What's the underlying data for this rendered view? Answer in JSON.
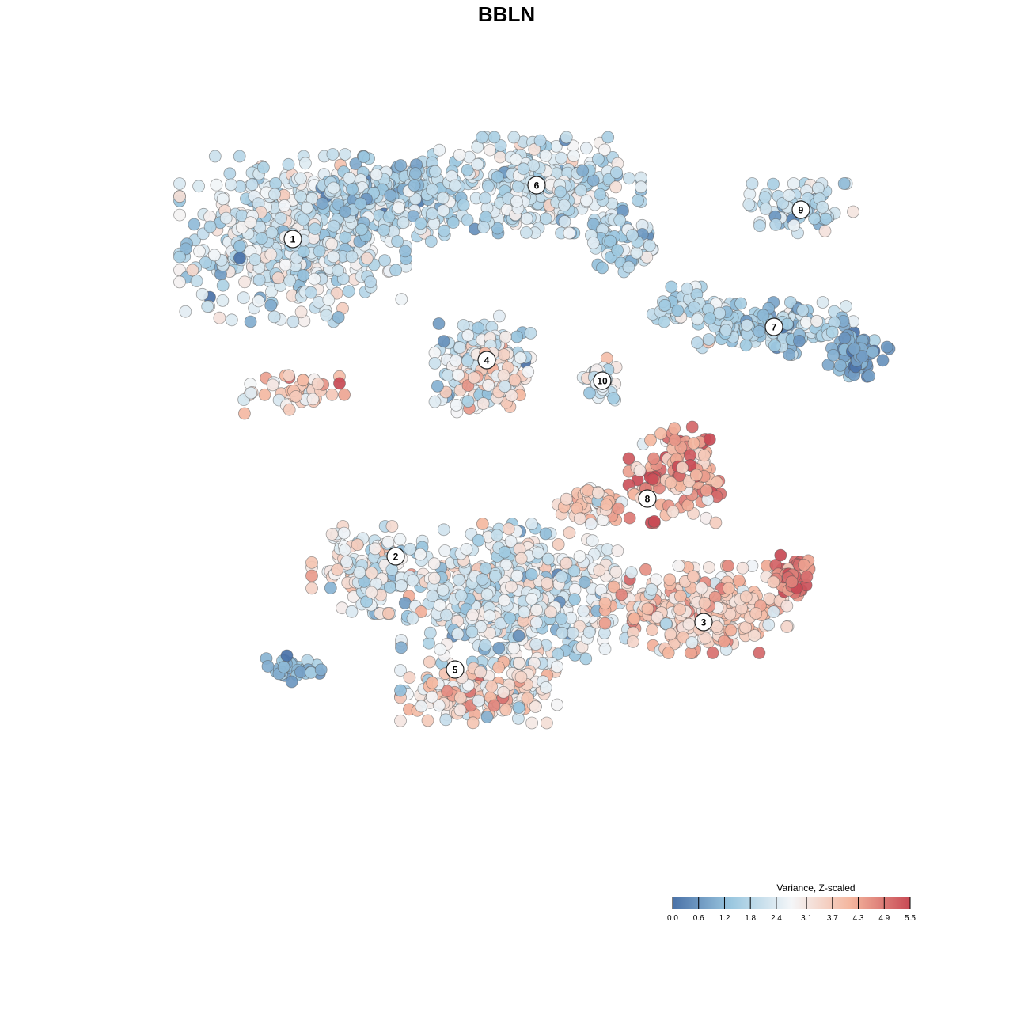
{
  "chart_data": {
    "type": "scatter",
    "title": "BBLN",
    "legend": {
      "title": "Variance, Z-scaled",
      "placement": "bottom-right",
      "ticks": [
        "0.0",
        "0.6",
        "1.2",
        "1.8",
        "2.4",
        "3.1",
        "3.7",
        "4.3",
        "4.9",
        "5.5"
      ],
      "range": [
        0.0,
        5.5
      ]
    },
    "colors": {
      "low": "#4a72a8",
      "midlow": "#9cc8e0",
      "mid": "#f4f6f8",
      "midhigh": "#f4b69e",
      "high": "#c84a55"
    },
    "clusters": [
      {
        "label": "1",
        "x": -2.7,
        "y": 3.08
      },
      {
        "label": "2",
        "x": -1.4,
        "y": -0.93
      },
      {
        "label": "3",
        "x": 2.49,
        "y": -1.76
      },
      {
        "label": "4",
        "x": -0.25,
        "y": 1.55
      },
      {
        "label": "5",
        "x": -0.65,
        "y": -2.36
      },
      {
        "label": "6",
        "x": 0.38,
        "y": 3.76
      },
      {
        "label": "7",
        "x": 3.38,
        "y": 1.97
      },
      {
        "label": "8",
        "x": 1.78,
        "y": -0.2
      },
      {
        "label": "9",
        "x": 3.72,
        "y": 3.45
      },
      {
        "label": "10",
        "x": 1.21,
        "y": 1.29
      }
    ],
    "regions": [
      {
        "cluster": "1",
        "x": -2.7,
        "y": 3.08,
        "sx": 1.3,
        "sy": 0.95,
        "n": 520,
        "value": 2.2,
        "spread": 0.6
      },
      {
        "cluster": "1",
        "x": -1.5,
        "y": 3.6,
        "sx": 1.0,
        "sy": 0.5,
        "n": 260,
        "value": 1.8,
        "spread": 0.6
      },
      {
        "cluster": "1",
        "x": -2.7,
        "y": 1.15,
        "sx": 0.6,
        "sy": 0.25,
        "n": 50,
        "value": 3.7,
        "spread": 0.7
      },
      {
        "cluster": "6",
        "x": 0.38,
        "y": 3.76,
        "sx": 1.2,
        "sy": 0.55,
        "n": 330,
        "value": 2.1,
        "spread": 0.6
      },
      {
        "cluster": "6",
        "x": 1.45,
        "y": 3.05,
        "sx": 0.45,
        "sy": 0.35,
        "n": 60,
        "value": 1.7,
        "spread": 0.6
      },
      {
        "cluster": "4",
        "x": -0.3,
        "y": 1.5,
        "sx": 0.55,
        "sy": 0.55,
        "n": 220,
        "value": 2.2,
        "spread": 0.8
      },
      {
        "cluster": "4",
        "x": -0.1,
        "y": 1.4,
        "sx": 0.35,
        "sy": 0.3,
        "n": 50,
        "value": 3.4,
        "spread": 0.6
      },
      {
        "cluster": "10",
        "x": 1.2,
        "y": 1.3,
        "sx": 0.25,
        "sy": 0.3,
        "n": 35,
        "value": 2.4,
        "spread": 0.6
      },
      {
        "cluster": "7",
        "x": 3.4,
        "y": 1.95,
        "sx": 0.9,
        "sy": 0.3,
        "n": 170,
        "value": 1.6,
        "spread": 0.6
      },
      {
        "cluster": "7",
        "x": 4.45,
        "y": 1.6,
        "sx": 0.35,
        "sy": 0.25,
        "n": 70,
        "value": 0.8,
        "spread": 0.4
      },
      {
        "cluster": "7",
        "x": 2.3,
        "y": 2.2,
        "sx": 0.6,
        "sy": 0.25,
        "n": 55,
        "value": 1.9,
        "spread": 0.6
      },
      {
        "cluster": "9",
        "x": 3.72,
        "y": 3.45,
        "sx": 0.6,
        "sy": 0.3,
        "n": 80,
        "value": 1.9,
        "spread": 0.6
      },
      {
        "cluster": "8",
        "x": 2.15,
        "y": 0.1,
        "sx": 0.55,
        "sy": 0.55,
        "n": 120,
        "value": 4.4,
        "spread": 0.8
      },
      {
        "cluster": "8",
        "x": 1.15,
        "y": -0.25,
        "sx": 0.5,
        "sy": 0.2,
        "n": 60,
        "value": 3.5,
        "spread": 0.6
      },
      {
        "cluster": "2",
        "x": -1.8,
        "y": -1.1,
        "sx": 0.6,
        "sy": 0.5,
        "n": 130,
        "value": 2.6,
        "spread": 0.7
      },
      {
        "cluster": "2",
        "x": -2.65,
        "y": -2.35,
        "sx": 0.35,
        "sy": 0.15,
        "n": 35,
        "value": 1.0,
        "spread": 0.5
      },
      {
        "cluster": "5",
        "x": 0.1,
        "y": -1.4,
        "sx": 1.3,
        "sy": 0.8,
        "n": 560,
        "value": 2.3,
        "spread": 0.7
      },
      {
        "cluster": "5",
        "x": -0.35,
        "y": -2.65,
        "sx": 0.9,
        "sy": 0.35,
        "n": 200,
        "value": 3.4,
        "spread": 0.8
      },
      {
        "cluster": "3",
        "x": 2.4,
        "y": -1.6,
        "sx": 1.05,
        "sy": 0.5,
        "n": 300,
        "value": 3.6,
        "spread": 0.7
      },
      {
        "cluster": "3",
        "x": 3.6,
        "y": -1.15,
        "sx": 0.3,
        "sy": 0.25,
        "n": 50,
        "value": 4.8,
        "spread": 0.6
      }
    ]
  }
}
